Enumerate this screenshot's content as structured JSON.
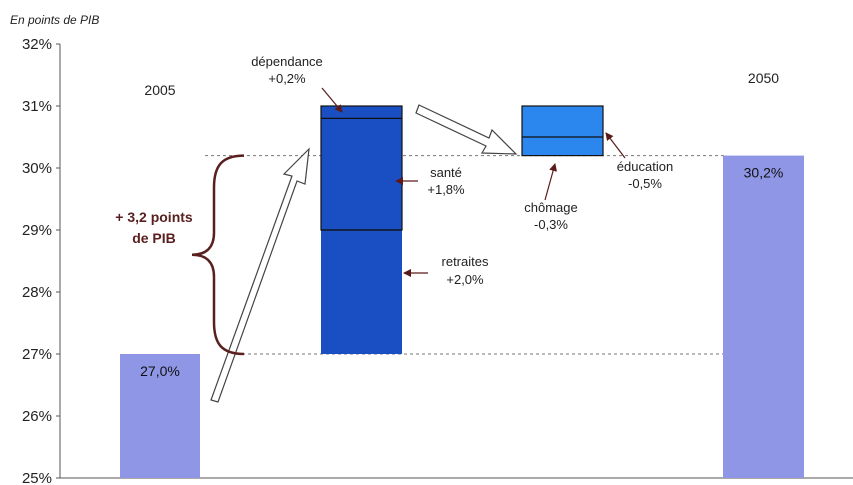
{
  "chart_data": {
    "type": "bar",
    "subtype": "waterfall",
    "unit_label": "En points de PIB",
    "y_ticks": [
      "25%",
      "26%",
      "27%",
      "28%",
      "29%",
      "30%",
      "31%",
      "32%"
    ],
    "ylim": [
      25,
      32
    ],
    "grid": false,
    "start": {
      "name": "2005",
      "value": 27.0,
      "label": "27,0%",
      "color": "#8f96e6"
    },
    "end": {
      "name": "2050",
      "value": 30.2,
      "label": "30,2%",
      "color": "#8f96e6"
    },
    "increase_stack": {
      "color": "#1a4fc4",
      "segments": [
        {
          "name": "retraites",
          "delta_label": "+2,0%",
          "from": 27.0,
          "to": 29.0
        },
        {
          "name": "santé",
          "delta_label": "+1,8%",
          "from": 29.0,
          "to": 30.8
        },
        {
          "name": "dépendance",
          "delta_label": "+0,2%",
          "from": 30.8,
          "to": 31.0
        }
      ]
    },
    "decrease_stack": {
      "color": "#2b86ee",
      "segments": [
        {
          "name": "éducation",
          "delta_label": "-0,5%",
          "from": 31.0,
          "to": 30.5
        },
        {
          "name": "chômage",
          "delta_label": "-0,3%",
          "from": 30.5,
          "to": 30.2
        }
      ]
    },
    "annotation": {
      "line1": "+ 3,2 points",
      "line2": "de PIB",
      "from": 27.0,
      "to": 30.2
    },
    "reference_lines": [
      27.0,
      30.2
    ]
  }
}
